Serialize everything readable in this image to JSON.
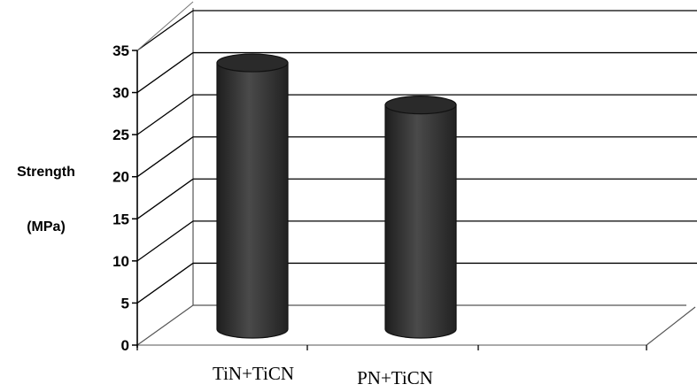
{
  "chart_data": {
    "type": "bar",
    "style": "3d-cylinder",
    "categories": [
      "TiN+TiCN",
      "PN+TiCN"
    ],
    "series": [
      {
        "values": [
          32,
          27
        ]
      }
    ],
    "ylabel": "Strength",
    "yunit": "(MPa)",
    "ylim": [
      0,
      35
    ],
    "yticks": [
      "0",
      "5",
      "10",
      "15",
      "20",
      "25",
      "30",
      "35"
    ],
    "grid": true,
    "colors": {
      "bar": "#3a3a3a",
      "bar_top": "#2a2a2a",
      "grid": "#000000",
      "background": "#ffffff"
    }
  }
}
